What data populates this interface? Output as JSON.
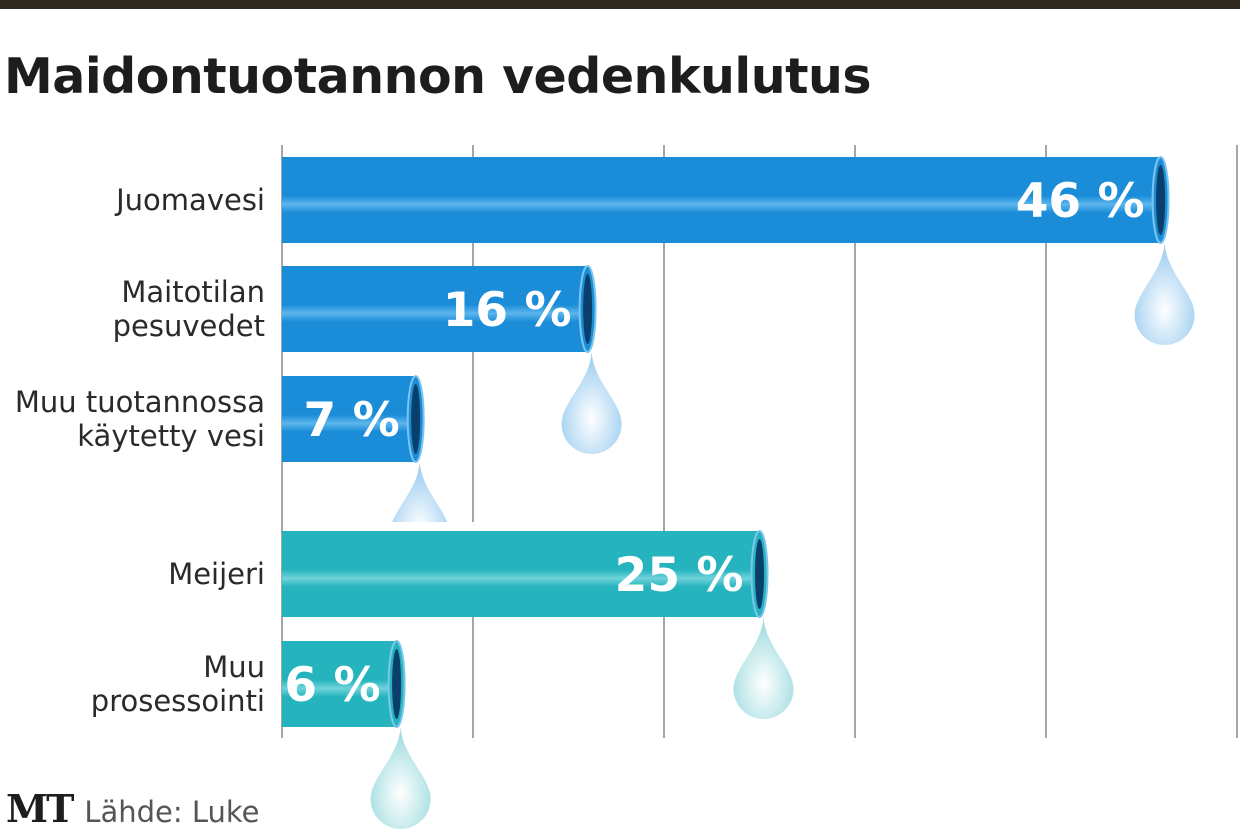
{
  "title": "Maidontuotannon vedenkulutus",
  "logo": "MT",
  "source": "Lähde: Luke",
  "colors": {
    "blue": "#1a8cd8",
    "teal": "#25b3be",
    "grid": "#888888"
  },
  "chart_data": {
    "type": "bar",
    "orientation": "horizontal",
    "title": "Maidontuotannon vedenkulutus",
    "categories": [
      [
        "Juomavesi"
      ],
      [
        "Maitotilan",
        "pesuvedet"
      ],
      [
        "Muu tuotannossa",
        "käytetty vesi"
      ],
      [
        "Meijeri"
      ],
      [
        "Muu",
        "prosessointi"
      ]
    ],
    "values": [
      46,
      16,
      7,
      25,
      6
    ],
    "labels": [
      "46 %",
      "16 %",
      "7 %",
      "25 %",
      "6 %"
    ],
    "groups": [
      "farm",
      "farm",
      "farm",
      "dairy",
      "dairy"
    ],
    "unit": "%",
    "xlim": [
      0,
      50
    ],
    "grid_step": 10,
    "grid": true
  }
}
